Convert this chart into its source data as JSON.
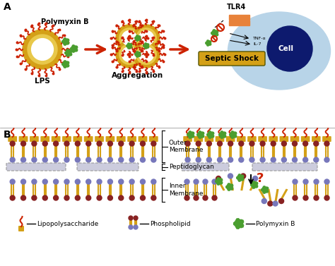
{
  "title_a": "A",
  "title_b": "B",
  "label_polymyxin_b": "Polymyxin B",
  "label_lps": "LPS",
  "label_aggregation": "Aggregation",
  "label_tlr4": "TLR4",
  "label_cell": "Cell",
  "label_septic_shock": "Septic Shock",
  "label_outer_membrane": "Outer\nMembrane",
  "label_peptidoglycan": "Peptidoglycan",
  "label_inner_membrane": "Inner\nMembrane",
  "label_question": "?",
  "legend_lps": "Lipopolysaccharide",
  "legend_phospholipid": "Phospholipid",
  "legend_polymyxin": "Polymyxin B",
  "bg_color": "#ffffff",
  "cell_color": "#b8d4e8",
  "cell_nucleus_color": "#0d1a6e",
  "gold": "#d4a017",
  "red": "#cc2200",
  "blue": "#7777bb",
  "darkred": "#882222",
  "green": "#4a9e2f",
  "tlr4_color": "#e8823a",
  "septic_shock_bg": "#d4a017",
  "arrow_color": "#cc2200",
  "peptidoglycan_color": "#ccccdd",
  "black": "#000000"
}
